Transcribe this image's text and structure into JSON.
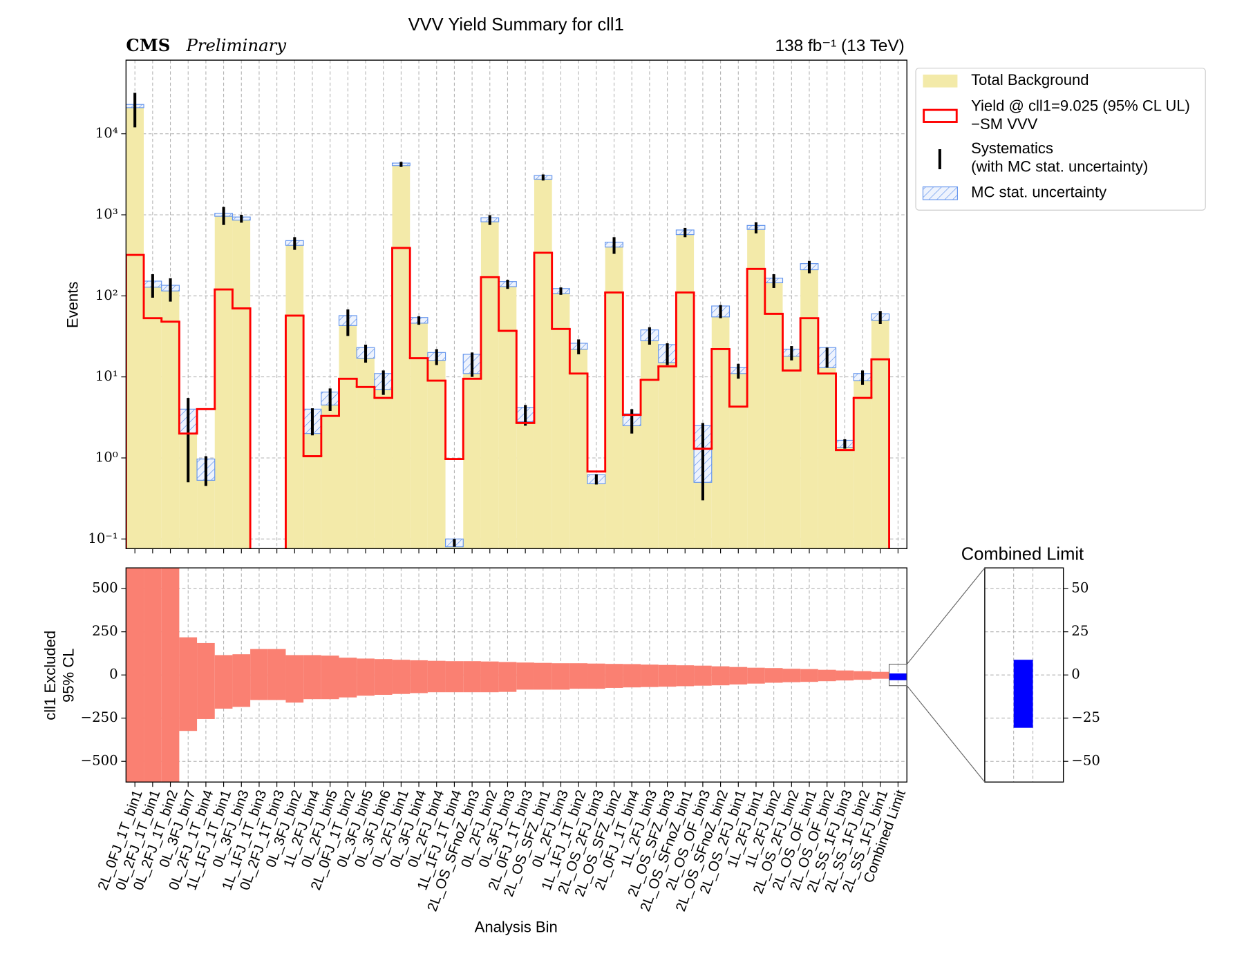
{
  "chart_data": [
    {
      "type": "bar",
      "title": "VVV Yield Summary for cll1",
      "cms_label": "CMS",
      "cms_sublabel": "Preliminary",
      "lumi_label": "138 fb⁻¹ (13 TeV)",
      "ylabel": "Events",
      "log_y": true,
      "grid": true,
      "legend": "outside upper right",
      "ylim": [
        0.076,
        81000
      ],
      "yticks": [
        {
          "value": 0.1,
          "label": "10⁻¹"
        },
        {
          "value": 1,
          "label": "10⁰"
        },
        {
          "value": 10,
          "label": "10¹"
        },
        {
          "value": 100,
          "label": "10²"
        },
        {
          "value": 1000,
          "label": "10³"
        },
        {
          "value": 10000,
          "label": "10⁴"
        }
      ],
      "series": [
        {
          "name": "Total Background",
          "color": "#f3eaa9",
          "values": [
            22000,
            140,
            125,
            3,
            0.75,
            1000,
            900,
            null,
            null,
            450,
            3,
            5.5,
            50,
            20,
            9,
            4200,
            50,
            18,
            0.09,
            15,
            870,
            140,
            3.5,
            2900,
            115,
            24,
            0.55,
            430,
            3,
            33,
            20,
            610,
            1.5,
            65,
            12,
            700,
            155,
            20,
            230,
            18,
            1.5,
            10,
            55,
            null
          ]
        },
        {
          "name": "Yield @ cll1=9.025 (95% CL UL)\n−SM VVV",
          "color": "#ff0000",
          "values": [
            320,
            53,
            48,
            2,
            4,
            120,
            70,
            null,
            null,
            57,
            1.05,
            3.3,
            9.5,
            7.5,
            5.5,
            390,
            17,
            9,
            0.97,
            9.5,
            170,
            37,
            2.7,
            340,
            39,
            11,
            0.68,
            110,
            3.4,
            9.2,
            13.5,
            110,
            1.3,
            22,
            4.3,
            215,
            60,
            12,
            53,
            11,
            1.25,
            5.5,
            16.5,
            null
          ]
        },
        {
          "name": "Systematics\n(with MC stat. uncertainty)",
          "color": "#000000",
          "errors": [
            10000,
            45,
            40,
            2.5,
            0.3,
            250,
            100,
            null,
            null,
            80,
            1.1,
            1.7,
            18,
            5,
            3,
            300,
            6,
            4,
            0.01,
            5,
            120,
            18,
            1,
            250,
            12,
            5,
            0.08,
            100,
            1,
            8,
            6,
            80,
            1.2,
            12,
            2.5,
            110,
            30,
            4,
            40,
            5,
            0.2,
            2,
            10,
            null
          ]
        },
        {
          "name": "MC stat. uncertainty",
          "color": "#6495ed",
          "errors": [
            1000,
            12,
            10,
            1,
            0.22,
            40,
            40,
            null,
            null,
            30,
            1,
            1,
            7,
            3,
            2,
            150,
            4,
            2,
            0.01,
            4,
            50,
            10,
            0.7,
            150,
            8,
            2,
            0.07,
            30,
            0.5,
            5,
            5,
            40,
            1,
            10,
            1,
            40,
            10,
            2,
            20,
            5,
            0.15,
            1,
            5,
            null
          ]
        }
      ]
    },
    {
      "type": "floating_bar",
      "ylabel": "cll1 Excluded\n95% CL",
      "xlabel": "Analysis Bin",
      "grid": true,
      "categories": [
        "2L_0FJ_1T_bin1",
        "0L_2FJ_1T_bin1",
        "0L_2FJ_1T_bin2",
        "0L_3FJ_bin7",
        "0L_2FJ_1T_bin4",
        "1L_1FJ_1T_bin1",
        "0L_3FJ_bin3",
        "1L_1FJ_1T_bin3",
        "0L_2FJ_1T_bin3",
        "0L_3FJ_bin2",
        "1L_2FJ_bin4",
        "0L_2FJ_bin5",
        "2L_0FJ_1T_bin2",
        "0L_3FJ_bin5",
        "0L_3FJ_bin6",
        "0L_2FJ_bin1",
        "0L_3FJ_bin4",
        "0L_2FJ_bin4",
        "1L_1FJ_1T_bin4",
        "2L_OS_SFnoZ_bin3",
        "0L_2FJ_bin2",
        "0L_3FJ_bin3",
        "2L_0FJ_1T_bin3",
        "2L_OS_SFZ_bin1",
        "0L_2FJ_bin3",
        "1L_1FJ_1T_bin2",
        "2L_OS_2FJ_bin3",
        "2L_OS_SFZ_bin2",
        "2L_0FJ_1T_bin4",
        "1L_2FJ_bin3",
        "2L_OS_SFZ_bin3",
        "2L_OS_SFnoZ_bin1",
        "2L_OS_OF_bin3",
        "2L_OS_SFnoZ_bin2",
        "2L_OS_2FJ_bin1",
        "1L_2FJ_bin1",
        "1L_2FJ_bin2",
        "2L_OS_2FJ_bin2",
        "2L_OS_OF_bin1",
        "2L_OS_OF_bin2",
        "2L_SS_1FJ_bin3",
        "2L_SS_1FJ_bin2",
        "2L_SS_1FJ_bin1",
        "Combined Limit"
      ],
      "low": [
        -700,
        -700,
        -700,
        -324,
        -255,
        -195,
        -185,
        -145,
        -145,
        -160,
        -140,
        -140,
        -130,
        -120,
        -115,
        -110,
        -105,
        -100,
        -100,
        -100,
        -100,
        -98,
        -85,
        -85,
        -85,
        -80,
        -80,
        -75,
        -72,
        -70,
        -68,
        -65,
        -62,
        -60,
        -55,
        -50,
        -45,
        -42,
        -40,
        -36,
        -32,
        -28,
        -22,
        -30.6
      ],
      "high": [
        700,
        700,
        700,
        218,
        185,
        115,
        120,
        150,
        150,
        115,
        115,
        112,
        100,
        95,
        92,
        88,
        85,
        82,
        80,
        80,
        78,
        75,
        72,
        70,
        68,
        68,
        66,
        64,
        63,
        60,
        58,
        56,
        54,
        50,
        46,
        42,
        40,
        36,
        34,
        30,
        26,
        22,
        18,
        8.8
      ],
      "color": "#fa8072",
      "highlight_color": "#0000ff",
      "ylim": [
        -620,
        620
      ],
      "yticks": [
        {
          "value": -500,
          "label": "−500"
        },
        {
          "value": -250,
          "label": "−250"
        },
        0,
        250,
        500
      ]
    },
    {
      "type": "floating_bar",
      "title": "Combined Limit",
      "grid": true,
      "low": [
        -30.6
      ],
      "high": [
        8.8
      ],
      "color": "#0000ff",
      "ylim": [
        -62,
        62
      ],
      "yticks": [
        {
          "value": -50,
          "label": "−50"
        },
        {
          "value": -25,
          "label": "−25"
        },
        0,
        25,
        50
      ]
    }
  ]
}
